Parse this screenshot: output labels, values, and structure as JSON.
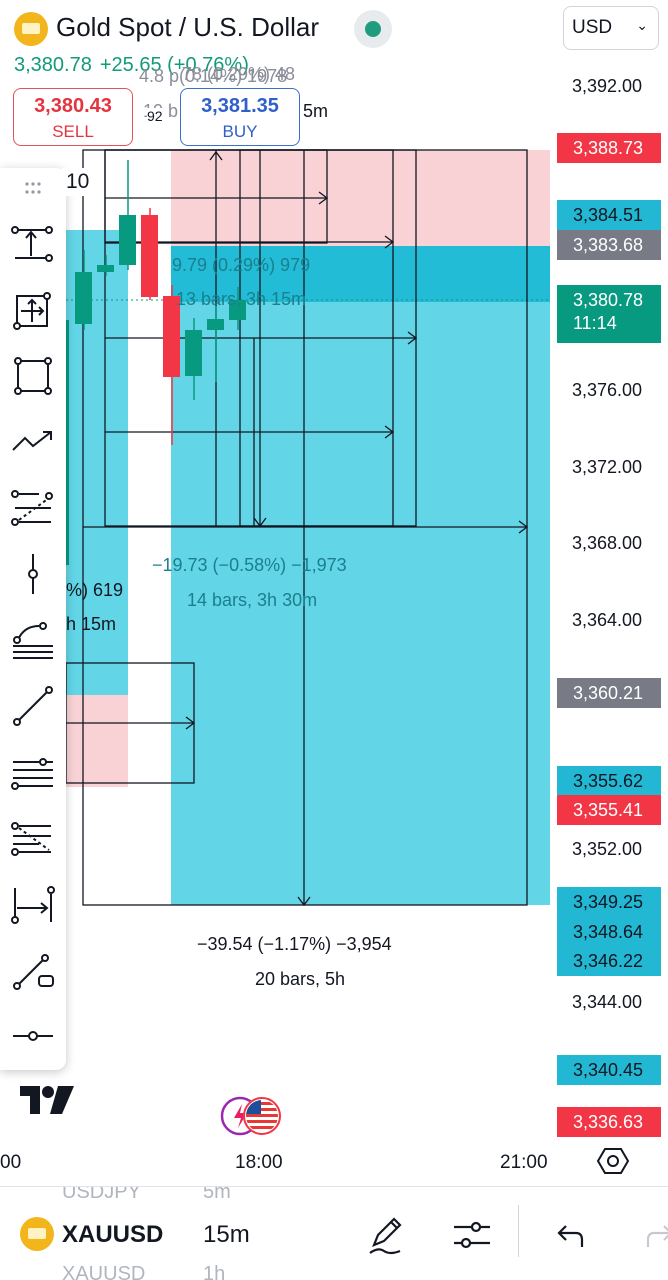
{
  "header": {
    "title": "Gold Spot / U.S. Dollar",
    "currency": "USD",
    "last_price": "3,380.78",
    "change": "+25.65 (+0.76%)",
    "sell_price": "3,380.43",
    "sell_label": "SELL",
    "buy_price": "3,381.35",
    "buy_label": "BUY",
    "spread": "92"
  },
  "overlap_text": {
    "top_line": "4.8 p(0.14%) 1978",
    "top_line_faint": "78 (0.29%) 48",
    "second_line_left": "10 b",
    "second_line_right": "5m",
    "interval_chip": "10"
  },
  "measurements": [
    {
      "change": "9.79 (0.29%) 979",
      "span": "13 bars, 3h 15m"
    },
    {
      "change": "−19.73 (−0.58%) −1,973",
      "span": "14 bars, 3h 30m"
    },
    {
      "change": "%) 619",
      "span": "h 15m"
    },
    {
      "change": "−39.54 (−1.17%) −3,954",
      "span": "20 bars, 5h"
    }
  ],
  "price_axis": {
    "ticks": [
      "3,392.00",
      "3,376.00",
      "3,372.00",
      "3,368.00",
      "3,364.00",
      "3,352.00",
      "3,344.00"
    ],
    "tags": [
      {
        "value": "3,388.73",
        "color": "#f23645"
      },
      {
        "value": "3,384.51",
        "color": "#22b8d3"
      },
      {
        "value": "3,383.68",
        "color": "#787b86"
      },
      {
        "value": "3,380.78",
        "sub": "11:14",
        "color": "#089981"
      },
      {
        "value": "3,360.21",
        "color": "#787b86"
      },
      {
        "value": "3,355.62",
        "color": "#22b8d3"
      },
      {
        "value": "3,355.41",
        "color": "#f23645"
      },
      {
        "value": "3,349.25",
        "color": "#22b8d3"
      },
      {
        "value": "3,348.64",
        "color": "#22b8d3"
      },
      {
        "value": "3,346.22",
        "color": "#22b8d3"
      },
      {
        "value": "3,340.45",
        "color": "#22b8d3"
      },
      {
        "value": "3,336.63",
        "color": "#f23645"
      }
    ]
  },
  "time_axis": [
    "00",
    "18:00",
    "21:00"
  ],
  "toolbar": {
    "tools": [
      "anchored-text-tool-icon",
      "rotated-rectangle-tool-icon",
      "rectangle-tool-icon",
      "path-tool-icon",
      "fib-extension-tool-icon",
      "vertical-line-tool-icon",
      "pitchfork-tool-icon",
      "trend-line-tool-icon",
      "parallel-channel-tool-icon",
      "fib-retracement-tool-icon",
      "date-range-tool-icon",
      "brush-tool-icon",
      "horizontal-ray-tool-icon"
    ]
  },
  "bottom_bar": {
    "symbol": "XAUUSD",
    "interval": "15m",
    "ghost_above_symbol": "USDJPY",
    "ghost_above_interval": "5m",
    "ghost_below_symbol": "XAUUSD",
    "ghost_below_interval": "1h"
  },
  "colors": {
    "up": "#089981",
    "down": "#f23645",
    "long_zone": "#5ed3e4",
    "short_zone": "#f8d2d5"
  }
}
